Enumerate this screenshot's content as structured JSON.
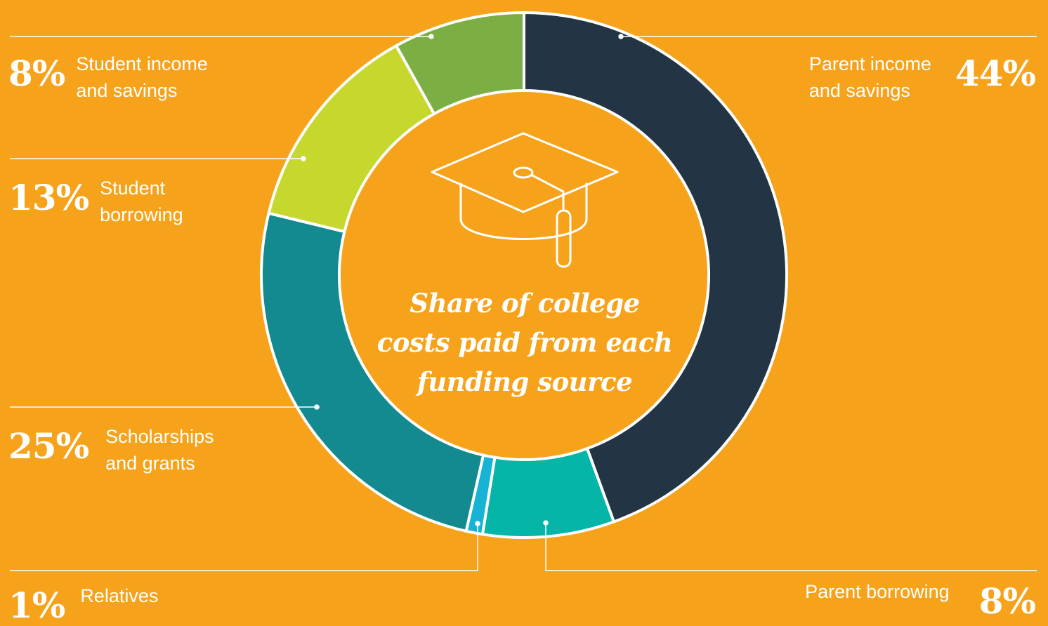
{
  "chart_data": {
    "type": "pie",
    "variant": "donut",
    "title": "Share of college costs paid from each funding source",
    "slices": [
      {
        "label": "Parent income and savings",
        "value": 44,
        "display": "44%",
        "color": "#233445"
      },
      {
        "label": "Parent borrowing",
        "value": 8,
        "display": "8%",
        "color": "#05B5A8"
      },
      {
        "label": "Relatives",
        "value": 1,
        "display": "1%",
        "color": "#16B3D4"
      },
      {
        "label": "Scholarships and grants",
        "value": 25,
        "display": "25%",
        "color": "#138A8F"
      },
      {
        "label": "Student borrowing",
        "value": 13,
        "display": "13%",
        "color": "#C6D82E"
      },
      {
        "label": "Student income and savings",
        "value": 8,
        "display": "8%",
        "color": "#7BAE43"
      }
    ]
  },
  "labels": {
    "student_income": {
      "pct": "8%",
      "text": "Student income\nand savings"
    },
    "student_borrowing": {
      "pct": "13%",
      "text": "Student\nborrowing"
    },
    "scholarships": {
      "pct": "25%",
      "text": "Scholarships\nand grants"
    },
    "relatives": {
      "pct": "1%",
      "text": "Relatives"
    },
    "parent_income": {
      "pct": "44%",
      "text": "Parent income\nand savings"
    },
    "parent_borrowing": {
      "pct": "8%",
      "text": "Parent borrowing"
    }
  },
  "center": {
    "title": "Share of college\ncosts paid from each\nfunding source",
    "icon": "graduation-cap-icon"
  },
  "colors": {
    "background": "#F7A21B",
    "leader_line": "#FFFFFF"
  }
}
